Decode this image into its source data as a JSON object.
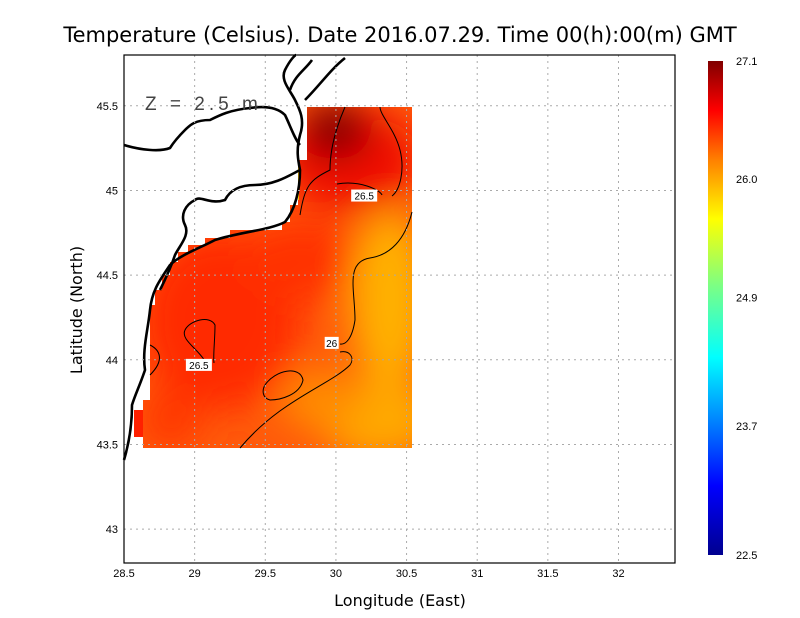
{
  "chart_data": {
    "type": "heatmap",
    "title": "Temperature (Celsius). Date 2016.07.29. Time 00(h):00(m)  GMT",
    "xlabel": "Longitude (East)",
    "ylabel": "Latitude (North)",
    "annotation": "Z = 2.5 m",
    "xlim": [
      28.5,
      32.4
    ],
    "ylim": [
      42.8,
      45.8
    ],
    "grid": true,
    "x_ticks": [
      "28.5",
      "29",
      "29.5",
      "30",
      "30.5",
      "31",
      "31.5",
      "32"
    ],
    "y_ticks": [
      "43",
      "43.5",
      "44",
      "44.5",
      "45",
      "45.5"
    ],
    "data_extent": {
      "lon": [
        28.65,
        30.55
      ],
      "lat": [
        43.5,
        45.5
      ]
    },
    "colorbar": {
      "min": 22.5,
      "max": 27.1,
      "ticks": [
        "22.5",
        "23.7",
        "24.9",
        "26.0",
        "27.1"
      ],
      "colors": [
        "#00008f",
        "#0000ff",
        "#00a0ff",
        "#00ffff",
        "#80ff80",
        "#ffff00",
        "#ff8000",
        "#ff0000",
        "#800000"
      ]
    },
    "contours": [
      {
        "level": "26.5",
        "label": "26.5",
        "lon": 30.2,
        "lat": 44.97
      },
      {
        "level": "26",
        "label": "26",
        "lon": 29.97,
        "lat": 44.1
      },
      {
        "level": "26.5",
        "label": "26.5",
        "lon": 29.03,
        "lat": 43.97
      }
    ]
  }
}
